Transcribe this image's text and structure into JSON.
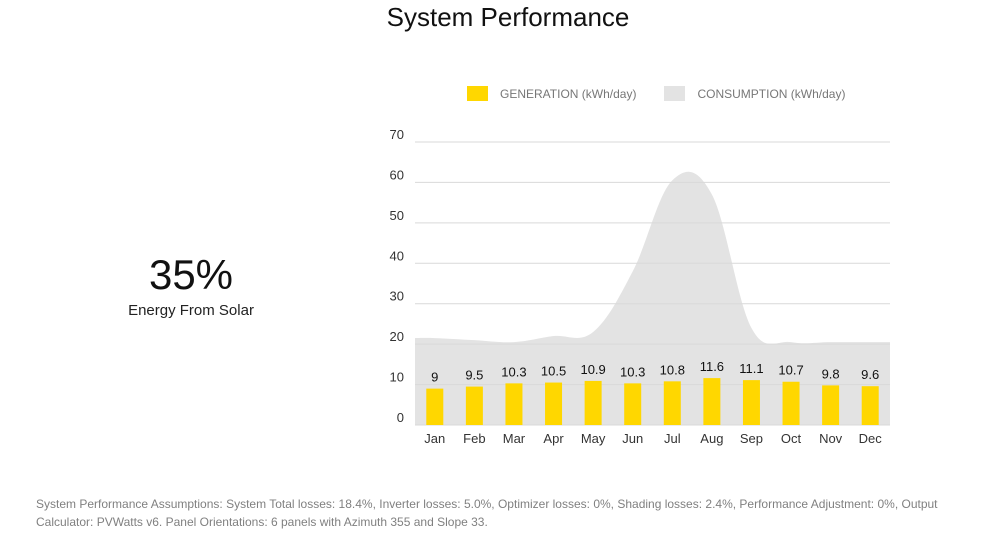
{
  "title": "System Performance",
  "summary": {
    "value": "35%",
    "label": "Energy From Solar"
  },
  "legend": {
    "generation_label": "GENERATION (kWh/day)",
    "consumption_label": "CONSUMPTION (kWh/day)"
  },
  "colors": {
    "generation": "#ffd700",
    "consumption": "#e3e3e3"
  },
  "chart_data": {
    "type": "bar",
    "categories": [
      "Jan",
      "Feb",
      "Mar",
      "Apr",
      "May",
      "Jun",
      "Jul",
      "Aug",
      "Sep",
      "Oct",
      "Nov",
      "Dec"
    ],
    "series": [
      {
        "name": "GENERATION (kWh/day)",
        "type": "bar",
        "values": [
          9,
          9.5,
          10.3,
          10.5,
          10.9,
          10.3,
          10.8,
          11.6,
          11.1,
          10.7,
          9.8,
          9.6
        ]
      },
      {
        "name": "CONSUMPTION (kWh/day)",
        "type": "area",
        "values": [
          21.5,
          21,
          20.5,
          22,
          23,
          38,
          60.5,
          57,
          24,
          20.5,
          20.5,
          20.5
        ]
      }
    ],
    "yticks": [
      0,
      10,
      20,
      30,
      40,
      50,
      60,
      70
    ],
    "ylim": [
      0,
      70
    ],
    "grid": true,
    "legend_position": "top"
  },
  "footnote": "System Performance Assumptions: System Total losses: 18.4%, Inverter losses: 5.0%, Optimizer losses: 0%, Shading losses: 2.4%, Performance Adjustment: 0%, Output Calculator: PVWatts v6. Panel Orientations: 6 panels with Azimuth 355 and Slope 33."
}
